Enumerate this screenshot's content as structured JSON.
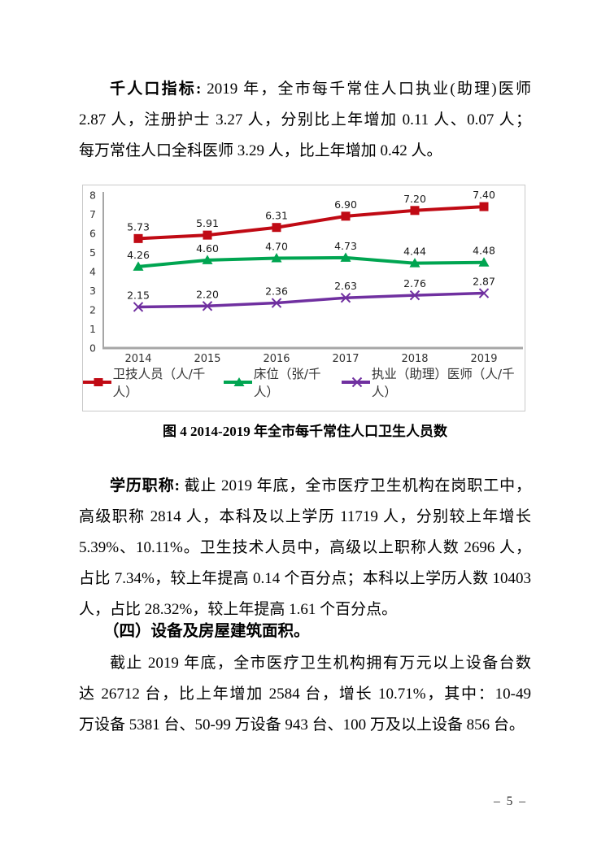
{
  "document": {
    "paragraph1": {
      "lead": "千人口指标:",
      "lines": [
        " 2019 年，全市每千常住人口执业(助理)医师",
        "2.87 人，注册护士 3.27 人，分别比上年增加 0.11 人、0.07 人；",
        "每万常住人口全科医师 3.29 人，比上年增加 0.42 人。"
      ]
    },
    "figure_caption": "图 4  2014-2019 年全市每千常住人口卫生人员数",
    "paragraph2": {
      "lead": "学历职称:",
      "lines": [
        " 截止 2019 年底，全市医疗卫生机构在岗职工中，",
        "高级职称 2814 人，本科及以上学历 11719 人，分别较上年增长",
        "5.39%、10.11%。卫生技术人员中，高级以上职称人数 2696 人，",
        "占比 7.34%，较上年提高 0.14 个百分点；本科以上学历人数 10403",
        "人，占比 28.32%，较上年提高 1.61 个百分点。"
      ]
    },
    "section_heading": "（四）设备及房屋建筑面积。",
    "paragraph3": {
      "lead": "",
      "lines": [
        "截止 2019 年底，全市医疗卫生机构拥有万元以上设备台数",
        "达 26712 台，比上年增加 2584 台，增长 10.71%，其中：10-49",
        "万设备 5381 台、50-99 万设备 943 台、100 万及以上设备 856 台。"
      ]
    },
    "page_number": "– 5 –"
  },
  "chart_data": {
    "type": "line",
    "title": "",
    "xlabel": "",
    "ylabel": "",
    "categories": [
      "2014",
      "2015",
      "2016",
      "2017",
      "2018",
      "2019"
    ],
    "series": [
      {
        "name": "卫技人员（人/千人）",
        "marker": "square",
        "color": "#c00a14",
        "values": [
          5.73,
          5.91,
          6.31,
          6.9,
          7.2,
          7.4
        ]
      },
      {
        "name": "床位（张/千人）",
        "marker": "triangle",
        "color": "#00a551",
        "values": [
          4.26,
          4.6,
          4.7,
          4.73,
          4.44,
          4.48
        ]
      },
      {
        "name": "执业（助理）医师（人/千人）",
        "marker": "x",
        "color": "#7030a0",
        "values": [
          2.15,
          2.2,
          2.36,
          2.63,
          2.76,
          2.87
        ]
      }
    ],
    "ylim": [
      0,
      8
    ],
    "y_ticks": [
      0,
      1,
      2,
      3,
      4,
      5,
      6,
      7,
      8
    ],
    "grid": false,
    "data_labels": true,
    "legend_position": "bottom",
    "axis_color": "#a6a6a6",
    "tick_label_color": "#333333",
    "data_label_color": "#1a1a1a"
  }
}
